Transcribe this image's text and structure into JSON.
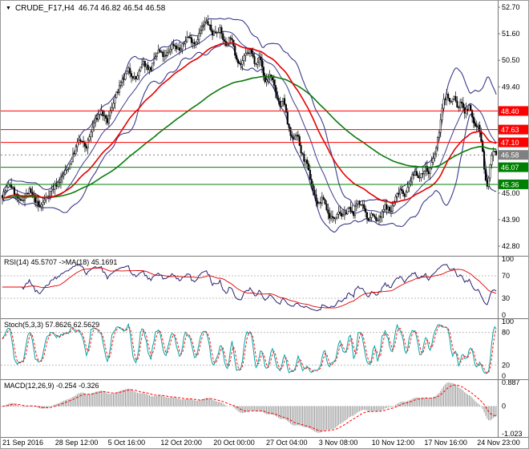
{
  "header": {
    "collapse_icon": "▼",
    "symbol": "CRUDE_F17,H4",
    "quote": "46.74 46.82 46.54 46.58"
  },
  "colors": {
    "background": "#ffffff",
    "text": "#000000",
    "axis_line": "#777777",
    "candle_up_fill": "#ffffff",
    "candle_down_fill": "#000000",
    "candle_outline": "#000000",
    "bollinger": "#3a3a8c",
    "ma_fast": "#e60000",
    "ma_slow": "#0a7a0a",
    "level_red": "#ff0000",
    "level_green": "#008000",
    "current_price": "#808080",
    "rsi_line": "#26246f",
    "rsi_ma": "#e00000",
    "stoch_main": "#00a3a3",
    "stoch_signal": "#ff0000",
    "macd_hist": "#9a9a9a",
    "macd_signal": "#ff0000",
    "grid_dashed": "#bdbdbd"
  },
  "chart_data": {
    "type": "candlestick",
    "symbol": "CRUDE_F17",
    "timeframe": "H4",
    "last_quote": {
      "open": 46.74,
      "high": 46.82,
      "low": 46.54,
      "close": 46.58
    },
    "y_axis": {
      "min": 42.8,
      "max": 52.7,
      "ticks": [
        52.7,
        51.6,
        50.5,
        49.4,
        45.0,
        43.9,
        42.8
      ]
    },
    "x_labels": [
      "21 Sep 2016",
      "28 Sep 12:00",
      "5 Oct 16:00",
      "12 Oct 20:00",
      "20 Oct 00:00",
      "27 Oct 04:00",
      "3 Nov 08:00",
      "10 Nov 12:00",
      "17 Nov 16:00",
      "24 Nov 23:00"
    ],
    "levels": [
      {
        "price": 48.4,
        "color": "#ff0000",
        "kind": "resistance"
      },
      {
        "price": 47.63,
        "color": "#ff0000",
        "kind": "resistance"
      },
      {
        "price": 47.1,
        "color": "#ff0000",
        "kind": "resistance"
      },
      {
        "price": 46.58,
        "color": "#808080",
        "kind": "current",
        "type": "current"
      },
      {
        "price": 46.07,
        "color": "#008000",
        "kind": "support"
      },
      {
        "price": 45.36,
        "color": "#008000",
        "kind": "support"
      }
    ],
    "candle_count": 330,
    "price_path": [
      [
        0.0,
        44.9
      ],
      [
        0.015,
        45.4
      ],
      [
        0.035,
        44.6
      ],
      [
        0.055,
        45.1
      ],
      [
        0.075,
        44.4
      ],
      [
        0.095,
        45.0
      ],
      [
        0.115,
        45.5
      ],
      [
        0.135,
        46.1
      ],
      [
        0.155,
        47.2
      ],
      [
        0.17,
        46.9
      ],
      [
        0.185,
        47.9
      ],
      [
        0.2,
        48.4
      ],
      [
        0.212,
        47.9
      ],
      [
        0.225,
        48.8
      ],
      [
        0.24,
        49.5
      ],
      [
        0.255,
        50.1
      ],
      [
        0.27,
        49.7
      ],
      [
        0.285,
        50.4
      ],
      [
        0.3,
        50.1
      ],
      [
        0.315,
        50.9
      ],
      [
        0.33,
        50.6
      ],
      [
        0.345,
        51.2
      ],
      [
        0.36,
        50.9
      ],
      [
        0.375,
        51.5
      ],
      [
        0.39,
        51.2
      ],
      [
        0.405,
        51.9
      ],
      [
        0.415,
        52.1
      ],
      [
        0.425,
        51.6
      ],
      [
        0.44,
        51.8
      ],
      [
        0.452,
        51.1
      ],
      [
        0.462,
        51.5
      ],
      [
        0.472,
        50.7
      ],
      [
        0.482,
        50.3
      ],
      [
        0.492,
        50.7
      ],
      [
        0.502,
        50.9
      ],
      [
        0.512,
        50.4
      ],
      [
        0.522,
        50.6
      ],
      [
        0.532,
        49.6
      ],
      [
        0.542,
        49.9
      ],
      [
        0.552,
        49.3
      ],
      [
        0.562,
        48.6
      ],
      [
        0.57,
        48.9
      ],
      [
        0.578,
        47.8
      ],
      [
        0.586,
        47.2
      ],
      [
        0.596,
        47.5
      ],
      [
        0.606,
        46.6
      ],
      [
        0.616,
        46.2
      ],
      [
        0.626,
        45.4
      ],
      [
        0.632,
        44.9
      ],
      [
        0.64,
        44.5
      ],
      [
        0.65,
        44.8
      ],
      [
        0.66,
        44.1
      ],
      [
        0.67,
        43.9
      ],
      [
        0.68,
        44.3
      ],
      [
        0.69,
        44.0
      ],
      [
        0.7,
        44.4
      ],
      [
        0.71,
        44.1
      ],
      [
        0.72,
        44.7
      ],
      [
        0.73,
        44.4
      ],
      [
        0.74,
        43.9
      ],
      [
        0.75,
        44.2
      ],
      [
        0.756,
        43.8
      ],
      [
        0.766,
        44.0
      ],
      [
        0.776,
        44.5
      ],
      [
        0.786,
        44.2
      ],
      [
        0.796,
        44.8
      ],
      [
        0.806,
        45.2
      ],
      [
        0.816,
        44.9
      ],
      [
        0.826,
        45.5
      ],
      [
        0.836,
        45.9
      ],
      [
        0.846,
        45.6
      ],
      [
        0.856,
        46.1
      ],
      [
        0.863,
        45.8
      ],
      [
        0.871,
        46.3
      ],
      [
        0.879,
        46.9
      ],
      [
        0.886,
        47.8
      ],
      [
        0.893,
        48.8
      ],
      [
        0.9,
        49.1
      ],
      [
        0.907,
        48.7
      ],
      [
        0.915,
        49.0
      ],
      [
        0.922,
        48.5
      ],
      [
        0.93,
        48.8
      ],
      [
        0.937,
        48.3
      ],
      [
        0.945,
        48.6
      ],
      [
        0.952,
        48.1
      ],
      [
        0.958,
        47.7
      ],
      [
        0.965,
        47.9
      ],
      [
        0.972,
        46.8
      ],
      [
        0.978,
        45.6
      ],
      [
        0.982,
        45.2
      ],
      [
        0.986,
        45.9
      ],
      [
        0.99,
        46.4
      ],
      [
        0.995,
        46.7
      ],
      [
        1.0,
        46.58
      ]
    ],
    "overlays": {
      "bollinger": {
        "period": 20,
        "deviation": 2
      },
      "ma_fast": {
        "period": 45
      },
      "ma_slow": {
        "period": 130
      }
    },
    "indicators": {
      "rsi": {
        "label": "RSI(14) 45.5707 ->MA(18) 45.1691",
        "period": 14,
        "ma_period": 18,
        "value": 45.5707,
        "ma_value": 45.1691,
        "levels": [
          70,
          30
        ],
        "scale": [
          100,
          70,
          30,
          0
        ]
      },
      "stoch": {
        "label": "Stoch(5,3,3) 57.8626 62.5629",
        "k": 5,
        "d": 3,
        "slowing": 3,
        "value": 57.8626,
        "signal_value": 62.5629,
        "levels": [
          80,
          20
        ],
        "scale": [
          100,
          80,
          20,
          0
        ]
      },
      "macd": {
        "label": "MACD(12,26,9) -0.254 -0.326",
        "fast": 12,
        "slow": 26,
        "signal": 9,
        "value": -0.254,
        "signal_value": -0.326,
        "scale": [
          0.887,
          0,
          -1.023
        ],
        "scale_max": 0.887,
        "scale_min": -1.023
      }
    }
  }
}
